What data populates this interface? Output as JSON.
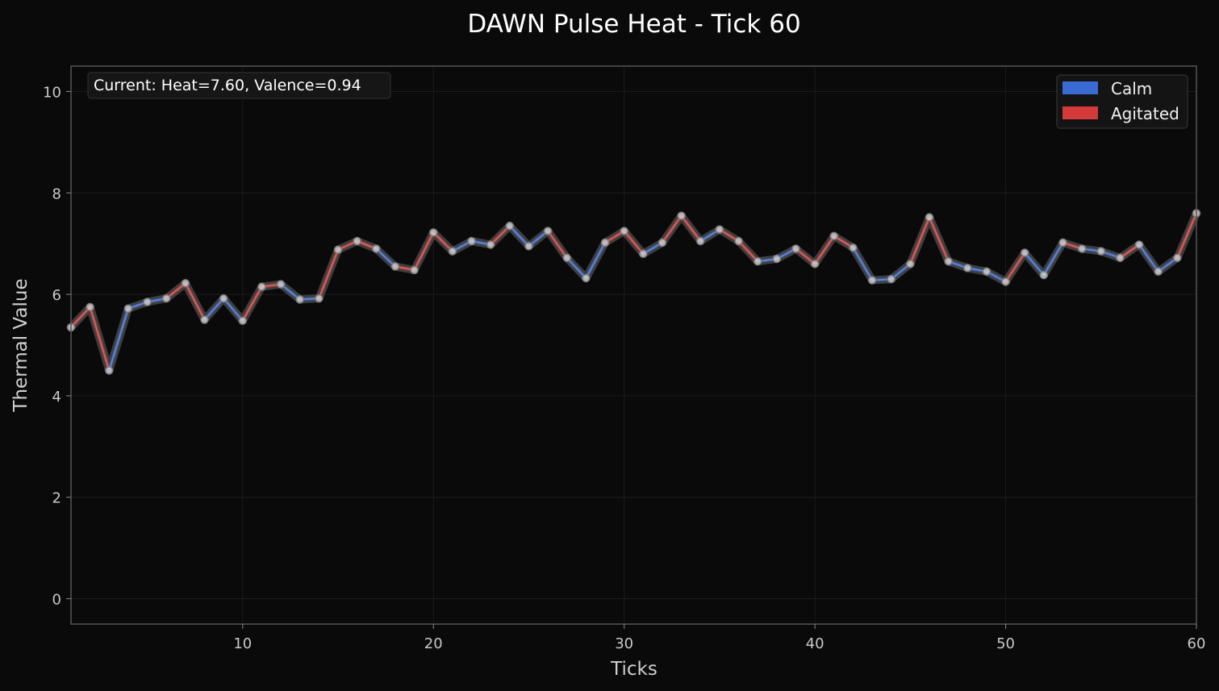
{
  "chart_data": {
    "type": "line",
    "title": "DAWN Pulse Heat - Tick 60",
    "xlabel": "Ticks",
    "ylabel": "Thermal Value",
    "xlim": [
      1,
      60
    ],
    "ylim": [
      -0.5,
      10.5
    ],
    "xticks": [
      10,
      20,
      30,
      40,
      50,
      60
    ],
    "yticks": [
      0,
      2,
      4,
      6,
      8,
      10
    ],
    "grid": true,
    "legend": {
      "placement": "top-right",
      "entries": [
        {
          "label": "Calm",
          "color": "#3a6bd4"
        },
        {
          "label": "Agitated",
          "color": "#d43a3a"
        }
      ]
    },
    "annotation": "Current: Heat=7.60, Valence=0.94",
    "series": [
      {
        "x": [
          1,
          2,
          3,
          4,
          5,
          6,
          7,
          8,
          9,
          10,
          11,
          12,
          13,
          14,
          15,
          16,
          17,
          18,
          19,
          20,
          21,
          22,
          23,
          24,
          25,
          26,
          27,
          28,
          29,
          30,
          31,
          32,
          33,
          34,
          35,
          36,
          37,
          38,
          39,
          40,
          41,
          42,
          43,
          44,
          45,
          46,
          47,
          48,
          49,
          50,
          51,
          52,
          53,
          54,
          55,
          56,
          57,
          58,
          59,
          60
        ],
        "values": [
          5.35,
          5.75,
          4.5,
          5.72,
          5.85,
          5.92,
          6.22,
          5.5,
          5.92,
          5.48,
          6.15,
          6.2,
          5.9,
          5.92,
          6.88,
          7.05,
          6.9,
          6.55,
          6.48,
          7.22,
          6.85,
          7.05,
          6.98,
          7.35,
          6.95,
          7.25,
          6.72,
          6.32,
          7.02,
          7.25,
          6.8,
          7.02,
          7.55,
          7.05,
          7.28,
          7.05,
          6.65,
          6.7,
          6.9,
          6.6,
          7.15,
          6.92,
          6.28,
          6.3,
          6.6,
          7.52,
          6.65,
          6.52,
          6.45,
          6.25,
          6.82,
          6.38,
          7.02,
          6.9,
          6.85,
          6.72,
          6.98,
          6.45,
          6.72,
          7.6
        ],
        "segment_colors": [
          "#d43a3a",
          "#d43a3a",
          "#3a6bd4",
          "#3a6bd4",
          "#3a6bd4",
          "#d43a3a",
          "#d43a3a",
          "#3a6bd4",
          "#3a6bd4",
          "#d43a3a",
          "#d43a3a",
          "#3a6bd4",
          "#3a6bd4",
          "#d43a3a",
          "#d43a3a",
          "#d43a3a",
          "#3a6bd4",
          "#d43a3a",
          "#d43a3a",
          "#d43a3a",
          "#3a6bd4",
          "#3a6bd4",
          "#d43a3a",
          "#3a6bd4",
          "#3a6bd4",
          "#d43a3a",
          "#3a6bd4",
          "#3a6bd4",
          "#d43a3a",
          "#d43a3a",
          "#3a6bd4",
          "#d43a3a",
          "#d43a3a",
          "#3a6bd4",
          "#d43a3a",
          "#d43a3a",
          "#3a6bd4",
          "#3a6bd4",
          "#d43a3a",
          "#d43a3a",
          "#d43a3a",
          "#3a6bd4",
          "#3a6bd4",
          "#3a6bd4",
          "#d43a3a",
          "#d43a3a",
          "#3a6bd4",
          "#3a6bd4",
          "#3a6bd4",
          "#d43a3a",
          "#3a6bd4",
          "#3a6bd4",
          "#d43a3a",
          "#3a6bd4",
          "#3a6bd4",
          "#d43a3a",
          "#3a6bd4",
          "#3a6bd4",
          "#d43a3a"
        ]
      }
    ]
  }
}
